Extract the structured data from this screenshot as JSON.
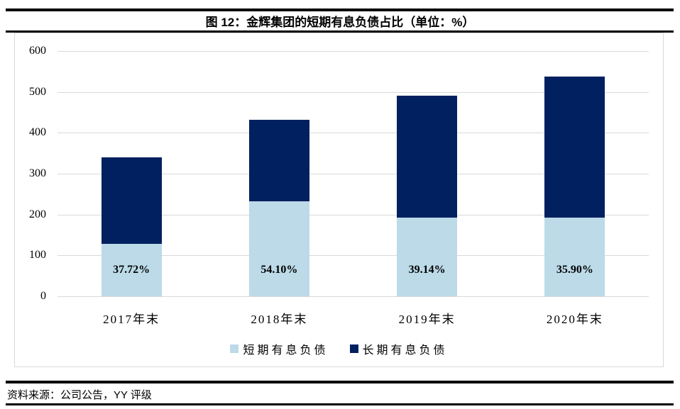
{
  "header": {
    "title": "图 12：金辉集团的短期有息负债占比（单位：%）"
  },
  "footer": {
    "source": "资料来源：公司公告，YY 评级"
  },
  "colors": {
    "short_term_fill": "#bcdae8",
    "long_term_fill": "#002060",
    "gridline": "#d9d9d9",
    "rule": "#000000"
  },
  "chart_data": {
    "type": "bar",
    "stacked": true,
    "title": "图 12：金辉集团的短期有息负债占比（单位：%）",
    "categories": [
      "2017年末",
      "2018年末",
      "2019年末",
      "2020年末"
    ],
    "series": [
      {
        "name": "短期有息负债",
        "color": "#bcdae8",
        "values": [
          128,
          233,
          192,
          193
        ]
      },
      {
        "name": "长期有息负债",
        "color": "#002060",
        "values": [
          212,
          198,
          298,
          345
        ]
      }
    ],
    "totals": [
      340,
      431,
      490,
      538
    ],
    "data_labels": [
      "37.72%",
      "54.10%",
      "39.14%",
      "35.90%"
    ],
    "ylim": [
      0,
      600
    ],
    "yticks": [
      0,
      100,
      200,
      300,
      400,
      500,
      600
    ],
    "grid": true,
    "legend_position": "bottom"
  }
}
